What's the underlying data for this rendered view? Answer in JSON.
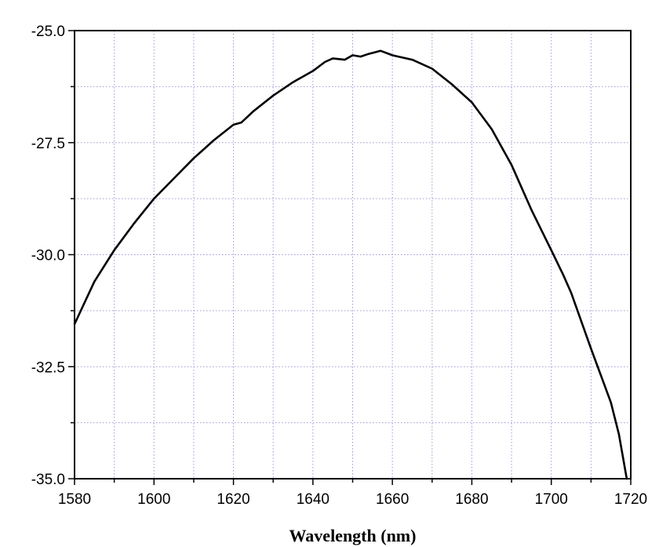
{
  "chart_data": {
    "type": "line",
    "title": "",
    "xlabel": "Wavelength (nm)",
    "ylabel": "",
    "xlim": [
      1580,
      1720
    ],
    "ylim": [
      -35.0,
      -25.0
    ],
    "x_ticks": [
      1580,
      1600,
      1620,
      1640,
      1660,
      1680,
      1700,
      1720
    ],
    "x_tick_labels": [
      "1580",
      "1600",
      "1620",
      "1640",
      "1660",
      "1680",
      "1700",
      "1720"
    ],
    "y_ticks": [
      -25.0,
      -27.5,
      -30.0,
      -32.5,
      -35.0
    ],
    "y_tick_labels": [
      "-25.0",
      "-27.5",
      "-30.0",
      "-32.5",
      "-35.0"
    ],
    "x_minor_ticks": [
      1590,
      1610,
      1630,
      1650,
      1670,
      1690,
      1710
    ],
    "y_minor_ticks": [
      -26.25,
      -28.75,
      -31.25,
      -33.75
    ],
    "grid": true,
    "grid_color": "#9a9ad8",
    "line_color": "#000000",
    "series": [
      {
        "x": [
          1580,
          1585,
          1590,
          1595,
          1600,
          1605,
          1610,
          1615,
          1620,
          1622,
          1625,
          1630,
          1635,
          1640,
          1643,
          1645,
          1648,
          1650,
          1652,
          1654,
          1657,
          1660,
          1665,
          1670,
          1675,
          1680,
          1685,
          1690,
          1695,
          1700,
          1703,
          1705,
          1710,
          1715,
          1717,
          1719
        ],
        "y": [
          -31.55,
          -30.6,
          -29.9,
          -29.3,
          -28.75,
          -28.3,
          -27.85,
          -27.45,
          -27.1,
          -27.05,
          -26.8,
          -26.45,
          -26.15,
          -25.9,
          -25.7,
          -25.62,
          -25.65,
          -25.55,
          -25.58,
          -25.52,
          -25.45,
          -25.55,
          -25.65,
          -25.85,
          -26.2,
          -26.6,
          -27.2,
          -28.0,
          -29.0,
          -29.9,
          -30.45,
          -30.85,
          -32.1,
          -33.3,
          -34.0,
          -35.0
        ]
      }
    ]
  }
}
